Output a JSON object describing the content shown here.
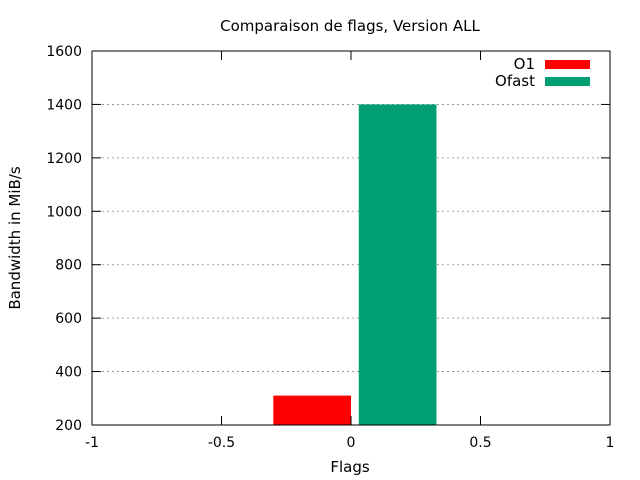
{
  "chart_data": {
    "type": "bar",
    "title": "Comparaison de flags, Version ALL",
    "xlabel": "Flags",
    "ylabel": "Bandwidth in MiB/s",
    "xlim": [
      -1,
      1
    ],
    "ylim": [
      200,
      1600
    ],
    "xticks": [
      "-1",
      "-0.5",
      "0",
      "0.5",
      "1"
    ],
    "yticks": [
      "200",
      "400",
      "600",
      "800",
      "1000",
      "1200",
      "1400",
      "1600"
    ],
    "grid": "horizontal dotted",
    "legend_position": "top-right",
    "series": [
      {
        "name": "O1",
        "color": "#ff0000",
        "x_start": -0.3,
        "x_end": 0.0,
        "value": 310
      },
      {
        "name": "Ofast",
        "color": "#009e73",
        "x_start": 0.03,
        "x_end": 0.33,
        "value": 1400
      }
    ]
  }
}
